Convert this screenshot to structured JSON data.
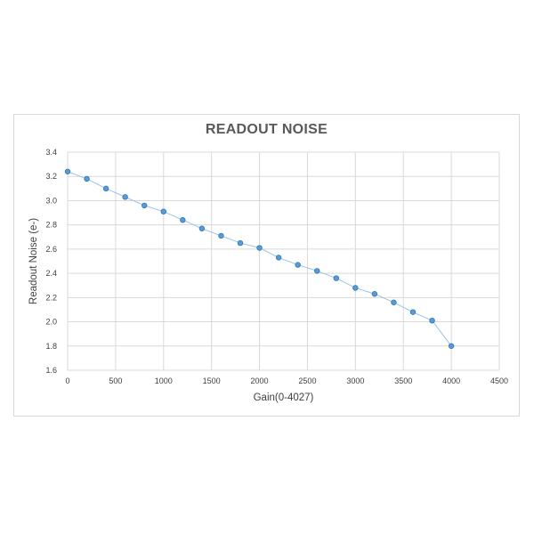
{
  "chart_data": {
    "type": "scatter",
    "title": "READOUT NOISE",
    "xlabel": "Gain(0-4027)",
    "ylabel": "Readout Noise (e-)",
    "xlim": [
      0,
      4500
    ],
    "ylim": [
      1.6,
      3.4
    ],
    "x_ticks": [
      "0",
      "500",
      "1000",
      "1500",
      "2000",
      "2500",
      "3000",
      "3500",
      "4000",
      "4500"
    ],
    "y_ticks": [
      "1.6",
      "1.8",
      "2.0",
      "2.2",
      "2.4",
      "2.6",
      "2.8",
      "3.0",
      "3.2",
      "3.4"
    ],
    "grid": true,
    "legend": "none",
    "series": [
      {
        "x": [
          0,
          200,
          400,
          600,
          800,
          1000,
          1200,
          1400,
          1600,
          1800,
          2000,
          2200,
          2400,
          2600,
          2800,
          3000,
          3200,
          3400,
          3600,
          3800,
          4000
        ],
        "y": [
          3.24,
          3.18,
          3.1,
          3.03,
          2.96,
          2.91,
          2.84,
          2.77,
          2.71,
          2.65,
          2.61,
          2.53,
          2.47,
          2.42,
          2.36,
          2.28,
          2.23,
          2.16,
          2.08,
          2.01,
          1.8
        ],
        "color": "#5b9bd5"
      }
    ]
  }
}
